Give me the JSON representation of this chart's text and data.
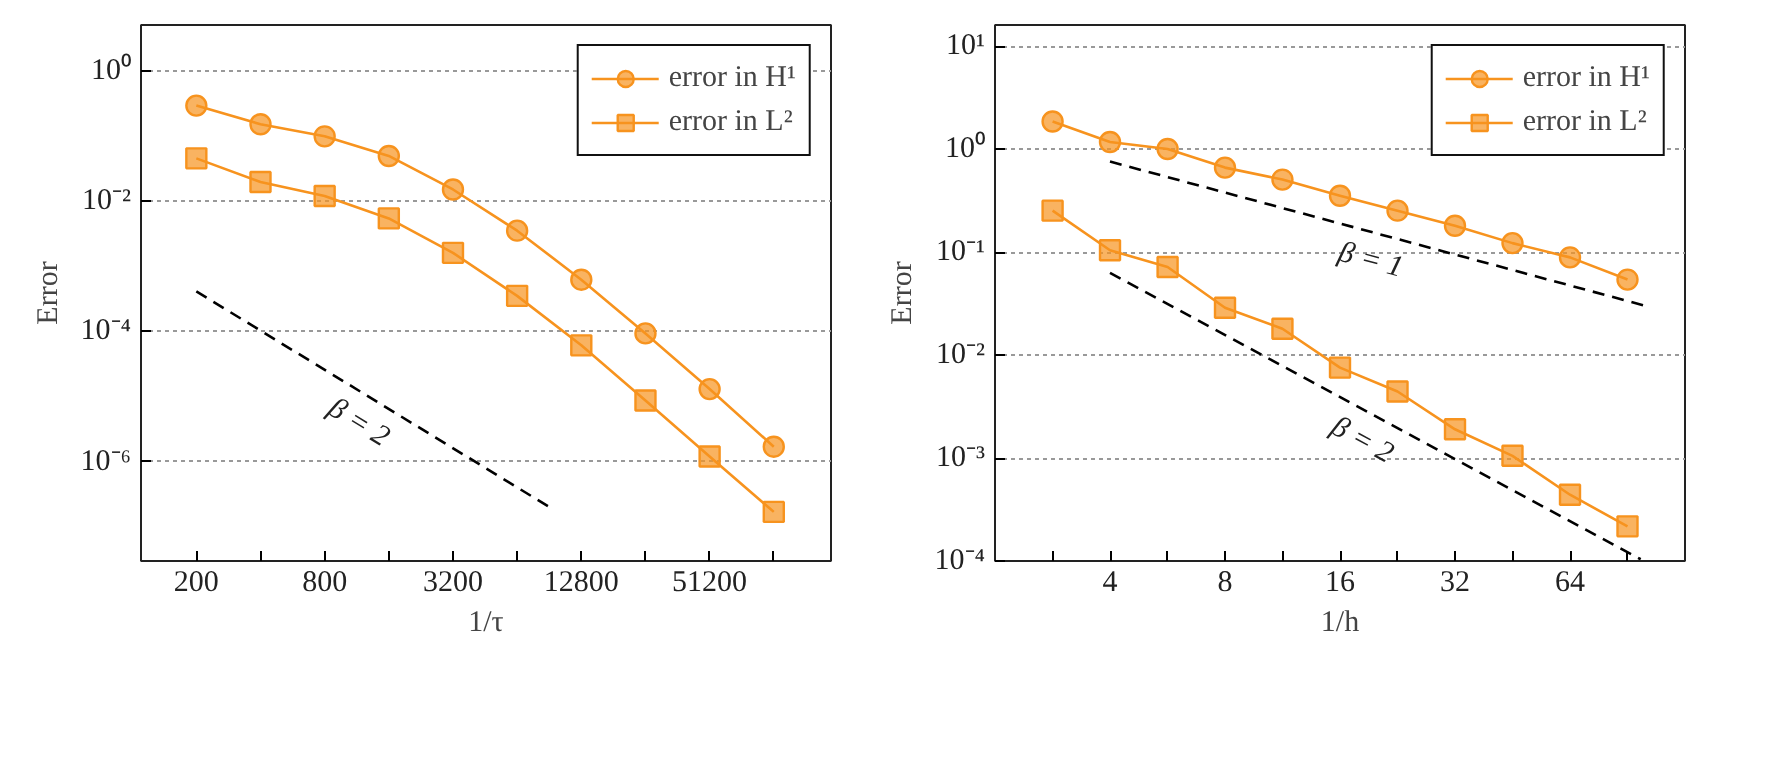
{
  "chart_data": [
    {
      "type": "line",
      "xlabel": "1/τ",
      "ylabel": "Error",
      "log": "xy",
      "grid": "y",
      "legend": "top right",
      "line_style": "solid",
      "x": [
        200,
        400,
        800,
        1600,
        3200,
        6400,
        12800,
        25600,
        51200,
        102400
      ],
      "xlim": [
        110,
        190000
      ],
      "xticks": [
        200,
        {
          "value": 400,
          "label": null
        },
        800,
        {
          "value": 1600,
          "label": null
        },
        3200,
        {
          "value": 6400,
          "label": null
        },
        12800,
        {
          "value": 25600,
          "label": null
        },
        51200,
        {
          "value": 102400,
          "label": null
        }
      ],
      "ylim": [
        3e-08,
        5
      ],
      "yticks": [
        {
          "value": 1,
          "label": "10⁰"
        },
        {
          "value": 0.01,
          "label": "10⁻²"
        },
        {
          "value": 0.0001,
          "label": "10⁻⁴"
        },
        {
          "value": 1e-06,
          "label": "10⁻⁶"
        }
      ],
      "series": [
        {
          "name": "error in H¹",
          "color": "#f7931e",
          "marker": "circle",
          "values": [
            0.29,
            0.15,
            0.098,
            0.049,
            0.015,
            0.0035,
            0.00062,
            9.3e-05,
            1.3e-05,
            1.7e-06
          ]
        },
        {
          "name": "error in L²",
          "color": "#f7931e",
          "marker": "square",
          "values": [
            0.045,
            0.0195,
            0.0119,
            0.0054,
            0.0016,
            0.00035,
            6.1e-05,
            8.7e-06,
            1.2e-06,
            1.7e-07
          ]
        },
        {
          "name": "β = 2",
          "color": "#000000",
          "marker": "none",
          "line_style": "dashed",
          "x": [
            200,
            9100
          ],
          "values": [
            0.00041,
            2e-07
          ]
        }
      ]
    },
    {
      "type": "line",
      "xlabel": "1/h",
      "ylabel": "Error",
      "log": "xy",
      "grid": "y",
      "legend": "top right",
      "line_style": "solid",
      "x": [
        2.83,
        4,
        5.66,
        8,
        11.31,
        16,
        22.63,
        32,
        45.25,
        64,
        90.51
      ],
      "xlim": [
        2,
        128
      ],
      "xticks": [
        {
          "value": 2.83,
          "label": null
        },
        4,
        {
          "value": 5.66,
          "label": null
        },
        8,
        {
          "value": 11.31,
          "label": null
        },
        16,
        {
          "value": 22.63,
          "label": null
        },
        32,
        {
          "value": 45.25,
          "label": null
        },
        64,
        {
          "value": 90.51,
          "label": null
        }
      ],
      "ylim": [
        0.0001,
        16
      ],
      "yticks": [
        {
          "value": 10,
          "label": "10¹"
        },
        {
          "value": 1,
          "label": "10⁰"
        },
        {
          "value": 0.1,
          "label": "10⁻¹"
        },
        {
          "value": 0.01,
          "label": "10⁻²"
        },
        {
          "value": 0.001,
          "label": "10⁻³"
        },
        {
          "value": 0.0001,
          "label": "10⁻⁴"
        }
      ],
      "series": [
        {
          "name": "error in H¹",
          "color": "#f7931e",
          "marker": "circle",
          "values": [
            1.85,
            1.17,
            1.0,
            0.66,
            0.505,
            0.352,
            0.252,
            0.18,
            0.122,
            0.0887,
            0.054
          ]
        },
        {
          "name": "error in L²",
          "color": "#f7931e",
          "marker": "square",
          "values": [
            0.252,
            0.104,
            0.0716,
            0.0288,
            0.018,
            0.00755,
            0.00442,
            0.0019,
            0.00105,
            0.00044,
            0.000217
          ]
        },
        {
          "name": "β = 1",
          "color": "#000000",
          "marker": "none",
          "line_style": "dashed",
          "x": [
            4,
            101
          ],
          "values": [
            0.755,
            0.03
          ]
        },
        {
          "name": "β = 2",
          "color": "#000000",
          "marker": "none",
          "line_style": "dashed",
          "x": [
            4,
            98
          ],
          "values": [
            0.0626,
            0.000104
          ]
        }
      ]
    }
  ]
}
